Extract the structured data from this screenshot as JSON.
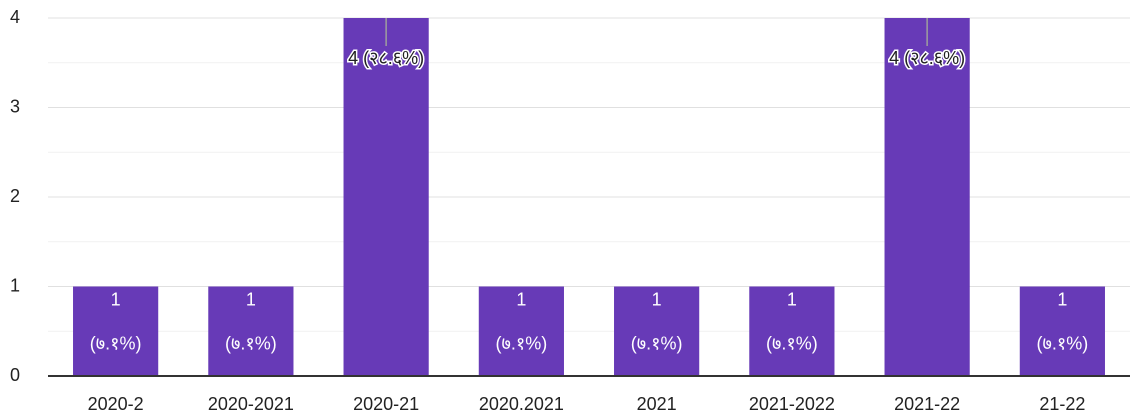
{
  "chart_data": {
    "type": "bar",
    "categories": [
      "2020-2",
      "2020-2021",
      "2020-21",
      "2020.2021",
      "2021",
      "2021-2022",
      "2021-22",
      "21-22"
    ],
    "values": [
      1,
      1,
      4,
      1,
      1,
      1,
      4,
      1
    ],
    "value_labels": [
      [
        "1",
        "(७.१%)"
      ],
      [
        "1",
        "(७.१%)"
      ],
      [
        "4 (२८.६%)"
      ],
      [
        "1",
        "(७.१%)"
      ],
      [
        "1",
        "(७.१%)"
      ],
      [
        "1",
        "(७.१%)"
      ],
      [
        "4 (२८.६%)"
      ],
      [
        "1",
        "(७.१%)"
      ]
    ],
    "color": "#673ab7",
    "ylim": [
      0,
      4
    ],
    "yticks": [
      0,
      1,
      2,
      3,
      4
    ],
    "grid": true
  }
}
